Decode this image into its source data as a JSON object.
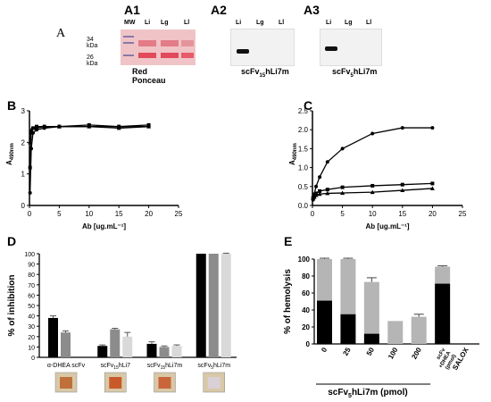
{
  "panels": {
    "a1": "A1",
    "a2": "A2",
    "a3": "A3",
    "a_left": "A",
    "b": "B",
    "c": "C",
    "d": "D",
    "e": "E"
  },
  "blot_a1": {
    "lanes": [
      "MW",
      "Li",
      "Lg",
      "Ll"
    ],
    "markers": [
      "34 kDa",
      "26 kDa"
    ],
    "caption": "Red Ponceau",
    "band_color": "#e04a5a"
  },
  "blot_a2": {
    "lanes": [
      "Li",
      "Lg",
      "Ll"
    ],
    "caption_main": "scFv",
    "caption_sub": "15",
    "caption_end": "hLi7m"
  },
  "blot_a3": {
    "lanes": [
      "Li",
      "Lg",
      "Ll"
    ],
    "caption_main": "scFv",
    "caption_sub": "5",
    "caption_end": "hLi7m"
  },
  "chart_data": [
    {
      "id": "B",
      "type": "scatter",
      "xlabel": "Ab [ug.mL⁻¹]",
      "ylabel": "A",
      "ylabel_sub": "490nm",
      "xlim": [
        0,
        25
      ],
      "ylim": [
        0,
        3
      ],
      "xticks": [
        0,
        5,
        10,
        15,
        20,
        25
      ],
      "yticks": [
        0,
        1,
        2,
        3
      ],
      "series": [
        {
          "x": [
            0.1,
            0.3,
            0.6,
            1.2,
            2.5,
            5,
            10,
            15,
            20
          ],
          "y": [
            0.4,
            1.8,
            2.3,
            2.4,
            2.45,
            2.5,
            2.5,
            2.5,
            2.5
          ]
        },
        {
          "x": [
            0.1,
            0.3,
            0.6,
            1.2,
            2.5,
            5,
            10,
            15,
            20
          ],
          "y": [
            1.2,
            2.3,
            2.45,
            2.5,
            2.5,
            2.5,
            2.55,
            2.5,
            2.55
          ]
        },
        {
          "x": [
            0.1,
            0.3,
            0.6,
            1.2,
            2.5,
            5,
            10,
            15,
            20
          ],
          "y": [
            2.0,
            2.4,
            2.45,
            2.45,
            2.5,
            2.5,
            2.5,
            2.45,
            2.5
          ]
        }
      ]
    },
    {
      "id": "C",
      "type": "scatter",
      "xlabel": "Ab [ug.mL⁻¹]",
      "ylabel": "A",
      "ylabel_sub": "490nm",
      "xlim": [
        0,
        25
      ],
      "ylim": [
        0,
        2.5
      ],
      "xticks": [
        0,
        5,
        10,
        15,
        20,
        25
      ],
      "yticks": [
        0.0,
        0.5,
        1.0,
        1.5,
        2.0,
        2.5
      ],
      "series": [
        {
          "x": [
            0.1,
            0.3,
            0.6,
            1.2,
            2.5,
            5,
            10,
            15,
            20
          ],
          "y": [
            0.15,
            0.3,
            0.5,
            0.75,
            1.15,
            1.5,
            1.9,
            2.05,
            2.05
          ]
        },
        {
          "x": [
            0.1,
            0.3,
            0.6,
            1.2,
            2.5,
            5,
            10,
            15,
            20
          ],
          "y": [
            0.2,
            0.25,
            0.32,
            0.38,
            0.42,
            0.48,
            0.52,
            0.55,
            0.58
          ]
        },
        {
          "x": [
            0.1,
            0.3,
            0.6,
            1.2,
            2.5,
            5,
            10,
            15,
            20
          ],
          "y": [
            0.2,
            0.22,
            0.27,
            0.3,
            0.32,
            0.33,
            0.35,
            0.4,
            0.45
          ]
        }
      ]
    },
    {
      "id": "D",
      "type": "bar",
      "ylabel": "% of inhibition",
      "ylim": [
        0,
        100
      ],
      "yticks": [
        0,
        10,
        20,
        30,
        40,
        50,
        60,
        70,
        80,
        90,
        100
      ],
      "groups": [
        {
          "label": "α-DHEA scFv",
          "values": [
            38,
            24
          ],
          "errors": [
            2,
            1.5
          ]
        },
        {
          "label": "scFv",
          "label_sub": "15",
          "label_end": "hLi7",
          "values": [
            11,
            27,
            20
          ],
          "errors": [
            1,
            1,
            4
          ]
        },
        {
          "label": "scFv",
          "label_sub": "15",
          "label_end": "hLi7m",
          "values": [
            13,
            10,
            11
          ],
          "errors": [
            2,
            1,
            1
          ]
        },
        {
          "label": "scFv",
          "label_sub": "5",
          "label_end": "hLi7m",
          "values": [
            100,
            100,
            100
          ],
          "errors": [
            0,
            0,
            0.5
          ]
        }
      ],
      "colors": [
        "#000000",
        "#8c8c8c",
        "#d9d9d9"
      ],
      "tube_colors": [
        "#c0703a",
        "#c85a2a",
        "#c8653a",
        "#d9d0d8"
      ]
    },
    {
      "id": "E",
      "type": "bar",
      "ylabel": "% of hemolysis",
      "ylim": [
        0,
        100
      ],
      "yticks": [
        0,
        20,
        40,
        60,
        80,
        100
      ],
      "categories": [
        "0",
        "25",
        "50",
        "100",
        "200",
        "scFv + DHEA (pmol)",
        "SALOX"
      ],
      "category_lines": [
        [
          "0"
        ],
        [
          "25"
        ],
        [
          "50"
        ],
        [
          "100"
        ],
        [
          "200"
        ],
        [
          "scFv",
          "+DHEA",
          "(pmol)"
        ],
        [
          "SALOX"
        ]
      ],
      "stack_bottom": [
        51,
        35,
        12,
        0,
        0,
        71,
        0
      ],
      "stack_total": [
        100,
        100,
        73,
        27,
        32,
        91,
        0
      ],
      "errors": [
        1,
        1,
        5,
        0,
        3,
        1,
        0
      ],
      "xlabel": "scFv",
      "xlabel_sub": "5",
      "xlabel_end": "hLi7m (pmol)",
      "colors": [
        "#000000",
        "#b5b5b5"
      ]
    }
  ]
}
